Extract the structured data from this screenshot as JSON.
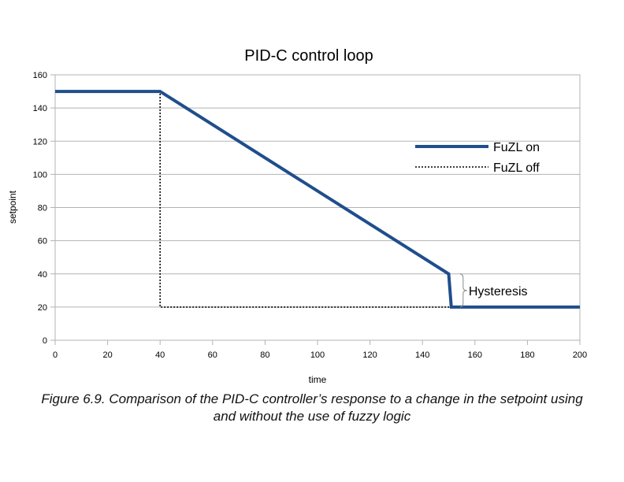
{
  "chart_data": {
    "type": "line",
    "title": "PID-C control loop",
    "xlabel": "time",
    "ylabel": "setpoint",
    "xlim": [
      0,
      200
    ],
    "ylim": [
      0,
      160
    ],
    "xticks": [
      0,
      20,
      40,
      60,
      80,
      100,
      120,
      140,
      160,
      180,
      200
    ],
    "yticks": [
      0,
      20,
      40,
      60,
      80,
      100,
      120,
      140,
      160
    ],
    "grid": true,
    "legend_position": "right",
    "series": [
      {
        "name": "FuZL on",
        "style": "solid",
        "color": "#1f4e8c",
        "points": [
          [
            0,
            150
          ],
          [
            40,
            150
          ],
          [
            150,
            40
          ],
          [
            151,
            20
          ],
          [
            200,
            20
          ]
        ]
      },
      {
        "name": "FuZL off",
        "style": "dotted",
        "color": "#000000",
        "points": [
          [
            0,
            150
          ],
          [
            40,
            150
          ],
          [
            40,
            20
          ],
          [
            151,
            20
          ]
        ]
      }
    ],
    "annotations": [
      {
        "text": "Hysteresis",
        "x": 151,
        "y_from": 20,
        "y_to": 40
      }
    ]
  },
  "caption": {
    "line1": "Figure 6.9. Comparison of the PID-C controller’s response to a change in the setpoint using",
    "line2": "and without the use of fuzzy logic"
  }
}
